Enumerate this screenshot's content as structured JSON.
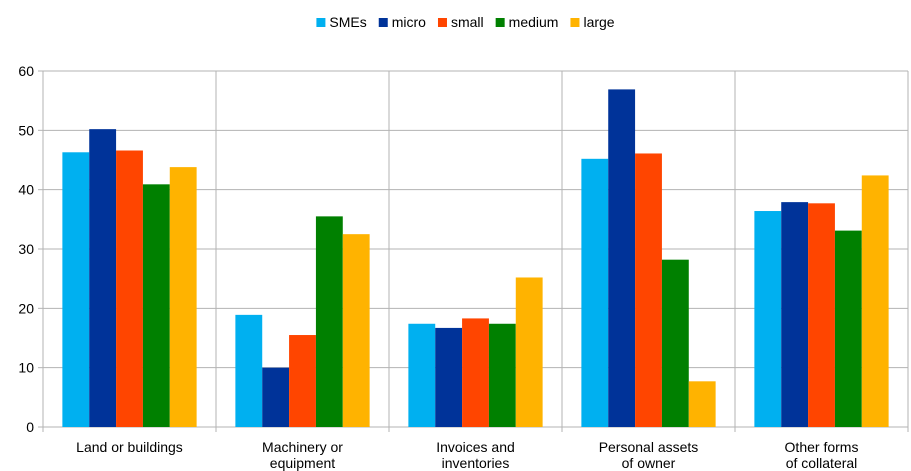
{
  "chart_data": {
    "type": "bar",
    "title": "",
    "xlabel": "",
    "ylabel": "",
    "ylim": [
      0,
      60
    ],
    "yticks": [
      0,
      10,
      20,
      30,
      40,
      50,
      60
    ],
    "grid": true,
    "legend_position": "top",
    "categories": [
      [
        "Land or buildings"
      ],
      [
        "Machinery or",
        "equipment"
      ],
      [
        "Invoices and",
        "inventories"
      ],
      [
        "Personal assets",
        "of owner"
      ],
      [
        "Other forms",
        "of collateral"
      ]
    ],
    "series": [
      {
        "name": "SMEs",
        "color": "#00b0f0",
        "values": [
          46.3,
          18.9,
          17.4,
          45.2,
          36.4
        ]
      },
      {
        "name": "micro",
        "color": "#003399",
        "values": [
          50.2,
          10.0,
          16.7,
          56.9,
          37.9
        ]
      },
      {
        "name": "small",
        "color": "#ff4500",
        "values": [
          46.6,
          15.5,
          18.3,
          46.1,
          37.7
        ]
      },
      {
        "name": "medium",
        "color": "#008000",
        "values": [
          40.9,
          35.5,
          17.4,
          28.2,
          33.1
        ]
      },
      {
        "name": "large",
        "color": "#ffb300",
        "values": [
          43.8,
          32.5,
          25.2,
          7.7,
          42.4
        ]
      }
    ]
  }
}
